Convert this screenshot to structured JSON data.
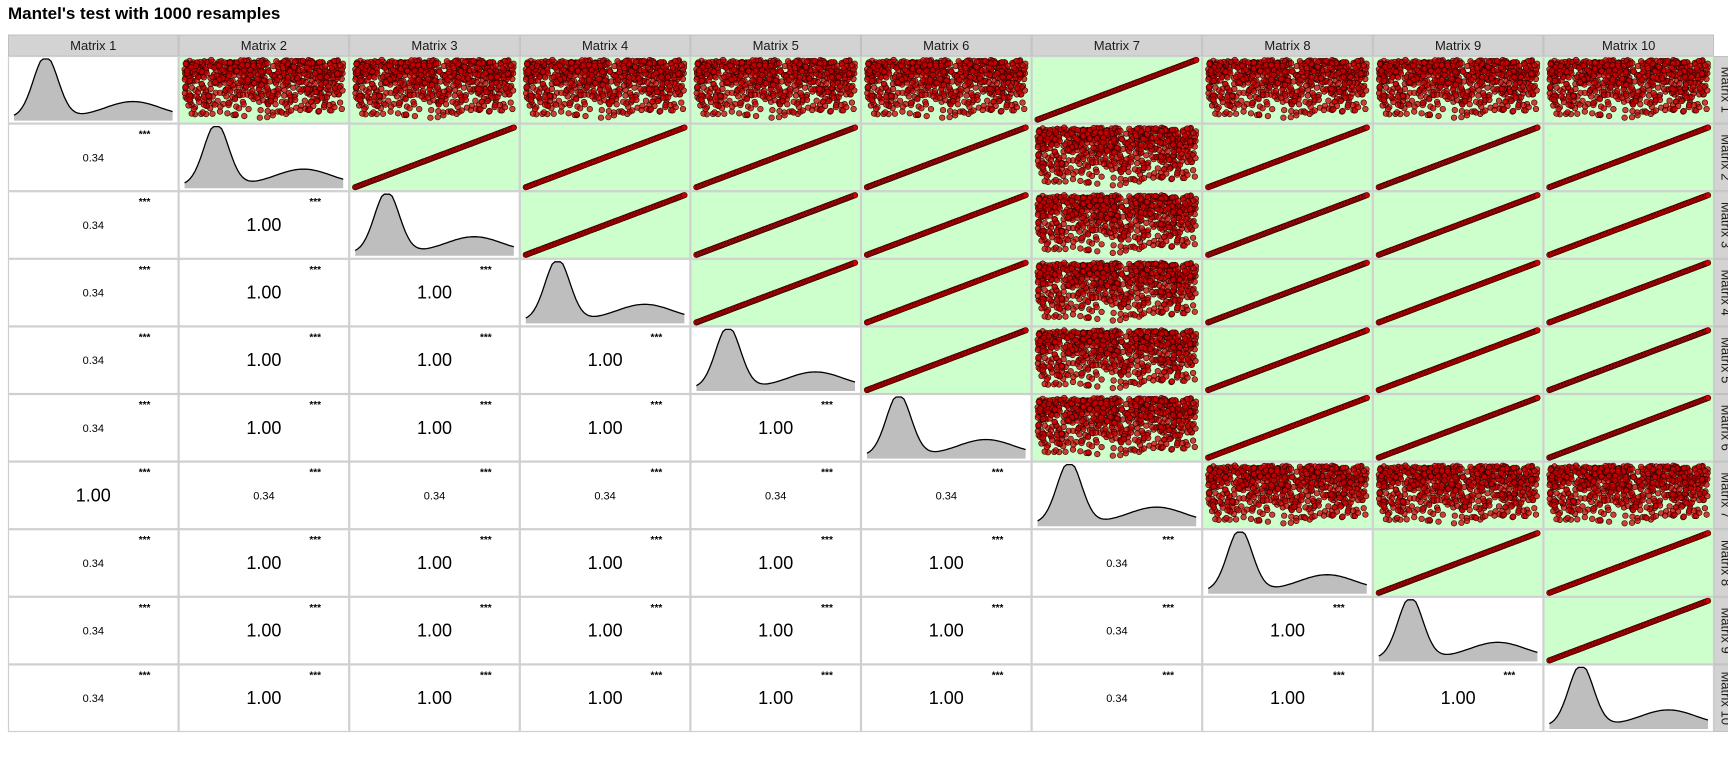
{
  "title": "Mantel's test with 1000 resamples",
  "chart_data": {
    "type": "scatter-matrix",
    "title": "Mantel's test with 1000 resamples",
    "resamples": 1000,
    "variables": [
      "Matrix 1",
      "Matrix 2",
      "Matrix 3",
      "Matrix 4",
      "Matrix 5",
      "Matrix 6",
      "Matrix 7",
      "Matrix 8",
      "Matrix 9",
      "Matrix 10"
    ],
    "diagonal": "density",
    "upper_panels": "scatter",
    "lower_panels": "correlation",
    "correlation_matrix": [
      [
        1.0,
        0.34,
        0.34,
        0.34,
        0.34,
        0.34,
        1.0,
        0.34,
        0.34,
        0.34
      ],
      [
        0.34,
        1.0,
        1.0,
        1.0,
        1.0,
        1.0,
        0.34,
        1.0,
        1.0,
        1.0
      ],
      [
        0.34,
        1.0,
        1.0,
        1.0,
        1.0,
        1.0,
        0.34,
        1.0,
        1.0,
        1.0
      ],
      [
        0.34,
        1.0,
        1.0,
        1.0,
        1.0,
        1.0,
        0.34,
        1.0,
        1.0,
        1.0
      ],
      [
        0.34,
        1.0,
        1.0,
        1.0,
        1.0,
        1.0,
        0.34,
        1.0,
        1.0,
        1.0
      ],
      [
        0.34,
        1.0,
        1.0,
        1.0,
        1.0,
        1.0,
        0.34,
        1.0,
        1.0,
        1.0
      ],
      [
        1.0,
        0.34,
        0.34,
        0.34,
        0.34,
        0.34,
        1.0,
        0.34,
        0.34,
        0.34
      ],
      [
        0.34,
        1.0,
        1.0,
        1.0,
        1.0,
        1.0,
        0.34,
        1.0,
        1.0,
        1.0
      ],
      [
        0.34,
        1.0,
        1.0,
        1.0,
        1.0,
        1.0,
        0.34,
        1.0,
        1.0,
        1.0
      ],
      [
        0.34,
        1.0,
        1.0,
        1.0,
        1.0,
        1.0,
        0.34,
        1.0,
        1.0,
        1.0
      ]
    ],
    "significance": "***",
    "significant_panel_color": "#ccffcc",
    "nonsignificant_panel_color": "#ffffff",
    "point_color": "#cc0000",
    "density_fill": "#bebebe",
    "strip_color": "#d3d3d3"
  }
}
